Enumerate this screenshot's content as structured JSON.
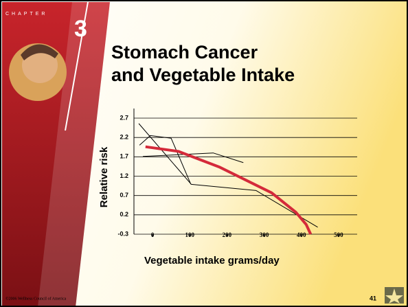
{
  "chapter_label": "CHAPTER",
  "chapter_number": "3",
  "chart_data": {
    "type": "line",
    "title": [
      "Stomach Cancer",
      "and Vegetable Intake"
    ],
    "x_label": "Vegetable intake grams/day",
    "y_label": "Relative risk",
    "xlim": [
      -50,
      550
    ],
    "xticks": [
      0,
      100,
      200,
      300,
      400,
      500
    ],
    "ylim": [
      -0.3,
      2.7
    ],
    "yticks": [
      -0.3,
      0.2,
      0.7,
      1.2,
      1.7,
      2.2,
      2.7
    ],
    "grid": true,
    "series": [
      {
        "color": "#000000",
        "width": 1,
        "x": [
          -37,
          104,
          278,
          444
        ],
        "values": [
          2.56,
          0.99,
          0.83,
          -0.12
        ]
      },
      {
        "color": "#000000",
        "width": 1,
        "x": [
          -35,
          -6,
          50,
          103
        ],
        "values": [
          2.0,
          2.25,
          2.18,
          0.99
        ]
      },
      {
        "color": "#000000",
        "width": 1,
        "x": [
          -26,
          163,
          244
        ],
        "values": [
          1.71,
          1.8,
          1.55
        ]
      },
      {
        "color": "#d42a3a",
        "width": 4,
        "x": [
          -19,
          70,
          181,
          261,
          320,
          385,
          413,
          425
        ],
        "values": [
          1.96,
          1.84,
          1.43,
          1.05,
          0.77,
          0.27,
          -0.05,
          -0.3
        ]
      }
    ]
  },
  "footer": "©2006 Wellness Council of America",
  "page_number": "41"
}
